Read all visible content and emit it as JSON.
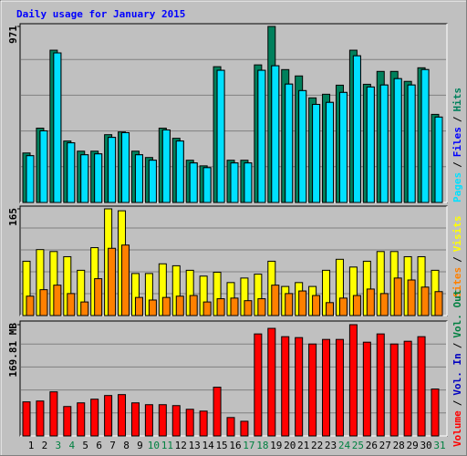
{
  "legend_separator": "/",
  "chart_data": [
    {
      "type": "bar",
      "title": "Daily usage for January 2015",
      "ylim": [
        0,
        971
      ],
      "yticks": [
        971
      ],
      "grid_divisions": 5,
      "series": [
        {
          "name": "Pages",
          "color": "#00e0ff",
          "values": [
            258,
            395,
            825,
            329,
            263,
            268,
            359,
            385,
            263,
            233,
            400,
            339,
            218,
            192,
            729,
            218,
            218,
            729,
            754,
            653,
            617,
            541,
            552,
            607,
            809,
            637,
            648,
            683,
            648,
            733,
            471
          ]
        },
        {
          "name": "Files",
          "color": "#0000ff",
          "values": [
            258,
            395,
            825,
            329,
            263,
            268,
            359,
            385,
            263,
            233,
            400,
            339,
            218,
            192,
            729,
            218,
            218,
            729,
            754,
            653,
            617,
            541,
            552,
            607,
            809,
            637,
            648,
            683,
            648,
            733,
            471
          ]
        },
        {
          "name": "Hits",
          "color": "#00805c",
          "values": [
            273,
            410,
            840,
            339,
            283,
            283,
            374,
            389,
            283,
            248,
            410,
            354,
            233,
            202,
            749,
            233,
            233,
            759,
            971,
            733,
            698,
            577,
            597,
            647,
            840,
            652,
            723,
            723,
            668,
            743,
            486
          ]
        }
      ]
    },
    {
      "type": "bar",
      "ylim": [
        0,
        165
      ],
      "yticks": [
        165
      ],
      "grid_divisions": 5,
      "series": [
        {
          "name": "Sites",
          "color": "#ff8000",
          "values": [
            30,
            40,
            47,
            34,
            21,
            57,
            104,
            109,
            28,
            24,
            28,
            30,
            31,
            21,
            26,
            27,
            23,
            26,
            47,
            34,
            38,
            31,
            20,
            27,
            31,
            41,
            34,
            58,
            55,
            44,
            37
          ]
        },
        {
          "name": "Visits",
          "color": "#ffff00",
          "values": [
            84,
            102,
            99,
            91,
            70,
            105,
            165,
            162,
            65,
            65,
            80,
            77,
            70,
            61,
            67,
            51,
            58,
            64,
            84,
            45,
            51,
            45,
            70,
            87,
            75,
            84,
            99,
            99,
            91,
            91,
            70
          ]
        }
      ]
    },
    {
      "type": "bar",
      "ylim": [
        0,
        169.81
      ],
      "yticks": [
        {
          "value": 169.81,
          "label": "169.81 MB"
        }
      ],
      "grid_divisions": 5,
      "categories": [
        "1",
        "2",
        "3",
        "4",
        "5",
        "6",
        "7",
        "8",
        "9",
        "10",
        "11",
        "12",
        "13",
        "14",
        "15",
        "16",
        "17",
        "18",
        "19",
        "20",
        "21",
        "22",
        "23",
        "24",
        "25",
        "26",
        "27",
        "28",
        "29",
        "30",
        "31"
      ],
      "category_colors": [
        "#000000",
        "#000000",
        "#008040",
        "#008040",
        "#000000",
        "#000000",
        "#000000",
        "#000000",
        "#000000",
        "#008040",
        "#008040",
        "#000000",
        "#000000",
        "#000000",
        "#000000",
        "#000000",
        "#008040",
        "#008040",
        "#000000",
        "#000000",
        "#000000",
        "#000000",
        "#000000",
        "#008040",
        "#008040",
        "#000000",
        "#000000",
        "#000000",
        "#000000",
        "#000000",
        "#008040"
      ],
      "series": [
        {
          "name": "Volume",
          "color": "#ff0000",
          "values": [
            52,
            53.3,
            67.3,
            44.9,
            50.5,
            56.1,
            61.7,
            63.1,
            50.5,
            47.7,
            47.7,
            46.3,
            40.7,
            37.9,
            74.4,
            28.1,
            22.4,
            155.7,
            164.2,
            151.5,
            150.1,
            140.3,
            147.3,
            147.3,
            169.81,
            143.1,
            155.7,
            140.3,
            144.5,
            151.5,
            71.6
          ]
        }
      ],
      "legend_extra": [
        {
          "name": "Vol. In",
          "color": "#0000c0"
        },
        {
          "name": "Vol. Out",
          "color": "#008040"
        }
      ]
    }
  ]
}
